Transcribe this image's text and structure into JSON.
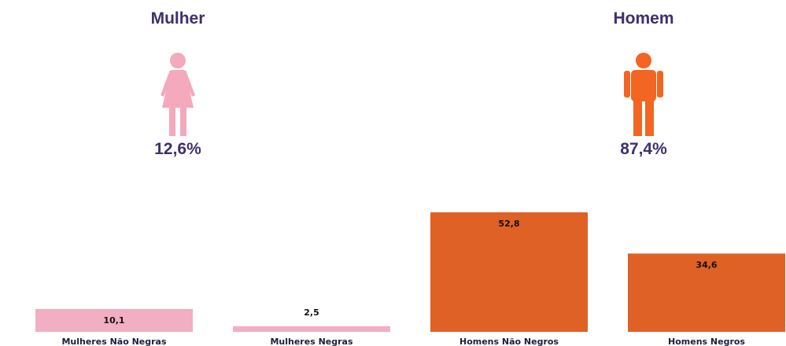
{
  "gender_summary": {
    "female": {
      "label": "Mulher",
      "percent": "12,6%",
      "icon": "female-person-icon",
      "color": "#f4a9bd"
    },
    "male": {
      "label": "Homem",
      "percent": "87,4%",
      "icon": "male-person-icon",
      "color": "#f26522"
    }
  },
  "chart_data": {
    "type": "bar",
    "categories": [
      "Mulheres Não Negras",
      "Mulheres Negras",
      "Homens Não Negros",
      "Homens Negros"
    ],
    "values": [
      10.1,
      2.5,
      52.8,
      34.6
    ],
    "value_labels": [
      "10,1",
      "2,5",
      "52,8",
      "34,6"
    ],
    "colors": [
      "#f2aec3",
      "#f2aec3",
      "#e06125",
      "#e06125"
    ],
    "ylim": [
      0,
      60
    ],
    "grid": false,
    "legend": "none"
  }
}
